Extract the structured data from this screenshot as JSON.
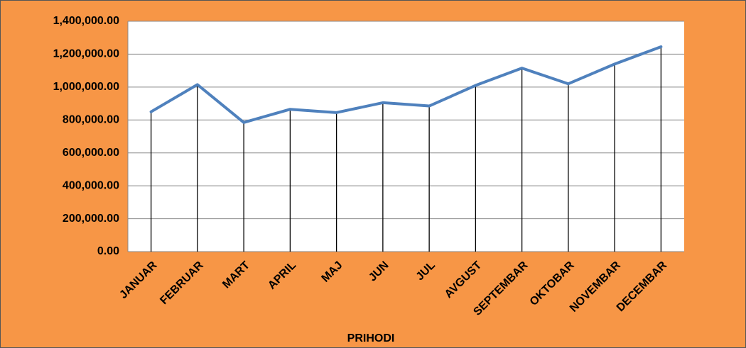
{
  "chart_data": {
    "type": "line",
    "x_label": "PRIHODI",
    "categories": [
      "JANUAR",
      "FEBRUAR",
      "MART",
      "APRIL",
      "MAJ",
      "JUN",
      "JUL",
      "AVGUST",
      "SEPTEMBAR",
      "OKTOBAR",
      "NOVEMBAR",
      "DECEMBAR"
    ],
    "series": [
      {
        "name": "PRIHODI",
        "color": "#4f81bd",
        "values": [
          850000,
          1015000,
          785000,
          865000,
          845000,
          905000,
          885000,
          1010000,
          1115000,
          1020000,
          1140000,
          1245000
        ]
      }
    ],
    "ylim": [
      0,
      1400000
    ],
    "yticks": [
      {
        "value": 0,
        "label": "0.00"
      },
      {
        "value": 200000,
        "label": "200,000.00"
      },
      {
        "value": 400000,
        "label": "400,000.00"
      },
      {
        "value": 600000,
        "label": "600,000.00"
      },
      {
        "value": 800000,
        "label": "800,000.00"
      },
      {
        "value": 1000000,
        "label": "1,000,000.00"
      },
      {
        "value": 1200000,
        "label": "1,200,000.00"
      },
      {
        "value": 1400000,
        "label": "1,400,000.00"
      }
    ],
    "grid": true,
    "drop_lines": true
  }
}
